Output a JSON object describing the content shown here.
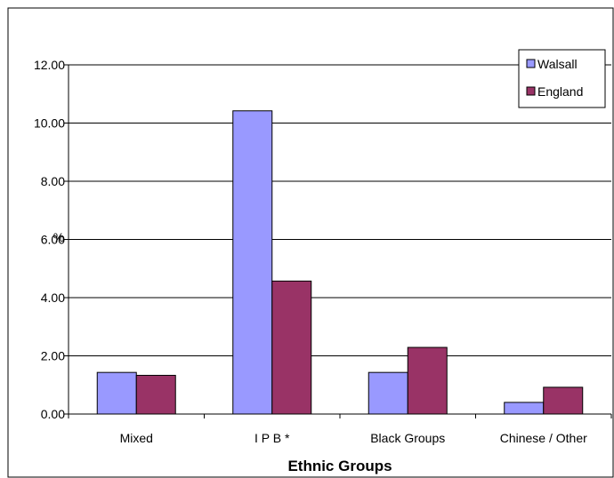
{
  "chart_data": {
    "type": "bar",
    "title": "",
    "xlabel": "Ethnic Groups",
    "ylabel": "%",
    "categories": [
      "Mixed",
      "I P B *",
      "Black Groups",
      "Chinese / Other"
    ],
    "series": [
      {
        "name": "Walsall",
        "values": [
          1.43,
          10.42,
          1.43,
          0.4
        ],
        "color": "#9999ff"
      },
      {
        "name": "England",
        "values": [
          1.33,
          4.57,
          2.29,
          0.92
        ],
        "color": "#993366"
      }
    ],
    "ylim": [
      0,
      12
    ],
    "yticks": [
      "0.00",
      "2.00",
      "4.00",
      "6.00",
      "8.00",
      "10.00",
      "12.00"
    ],
    "grid": true,
    "legend_position": "top-right"
  }
}
